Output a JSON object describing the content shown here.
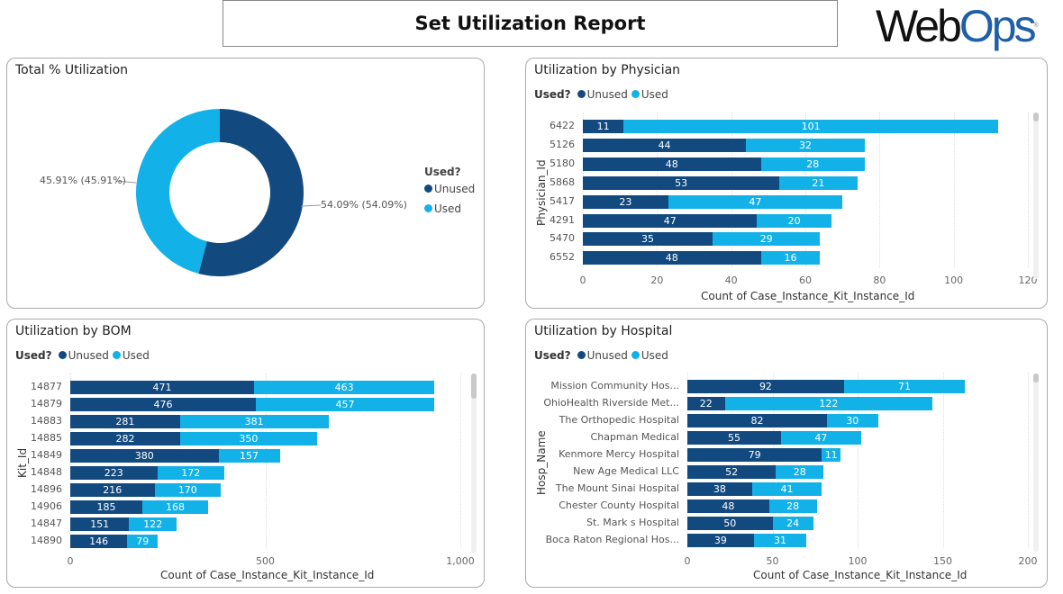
{
  "header": {
    "title": "Set Utilization Report",
    "logo_text": "WebOps"
  },
  "colors": {
    "unused": "#124a80",
    "used": "#12b2e8"
  },
  "legend": {
    "title": "Used?",
    "unused": "Unused",
    "used": "Used"
  },
  "donut": {
    "title": "Total % Utilization",
    "unused_pct": 54.09,
    "used_pct": 45.91,
    "unused_label": "54.09% (54.09%)",
    "used_label": "45.91% (45.91%)"
  },
  "chart_data": [
    {
      "type": "bar",
      "orientation": "horizontal",
      "stacked": true,
      "title": "Utilization by Physician",
      "ylabel": "Physician_Id",
      "xlabel": "Count of Case_Instance_Kit_Instance_Id",
      "xlim": [
        0,
        120
      ],
      "ticks": [
        "0",
        "20",
        "40",
        "60",
        "80",
        "100",
        "120"
      ],
      "categories": [
        "6422",
        "5126",
        "5180",
        "5868",
        "5417",
        "4291",
        "5470",
        "6552"
      ],
      "series": [
        {
          "name": "Unused",
          "values": [
            11,
            44,
            48,
            53,
            23,
            47,
            35,
            48
          ]
        },
        {
          "name": "Used",
          "values": [
            101,
            32,
            28,
            21,
            47,
            20,
            29,
            16
          ]
        }
      ]
    },
    {
      "type": "bar",
      "orientation": "horizontal",
      "stacked": true,
      "title": "Utilization by BOM",
      "ylabel": "Kit_Id",
      "xlabel": "Count of Case_Instance_Kit_Instance_Id",
      "xlim": [
        0,
        1000
      ],
      "ticks": [
        "0",
        "500",
        "1,000"
      ],
      "categories": [
        "14877",
        "14879",
        "14883",
        "14885",
        "14849",
        "14848",
        "14896",
        "14906",
        "14847",
        "14890"
      ],
      "series": [
        {
          "name": "Unused",
          "values": [
            471,
            476,
            281,
            282,
            380,
            223,
            216,
            185,
            151,
            146
          ]
        },
        {
          "name": "Used",
          "values": [
            463,
            457,
            381,
            350,
            157,
            172,
            170,
            168,
            122,
            79
          ]
        }
      ]
    },
    {
      "type": "bar",
      "orientation": "horizontal",
      "stacked": true,
      "title": "Utilization by Hospital",
      "ylabel": "Hosp_Name",
      "xlabel": "Count of Case_Instance_Kit_Instance_Id",
      "xlim": [
        0,
        200
      ],
      "ticks": [
        "0",
        "50",
        "100",
        "150",
        "200"
      ],
      "categories": [
        "Mission Community Hos...",
        "OhioHealth Riverside Met...",
        "The Orthopedic Hospital",
        "Chapman Medical",
        "Kenmore Mercy Hospital",
        "New Age Medical LLC",
        "The Mount Sinai Hospital",
        "Chester County Hospital",
        "St. Mark s Hospital",
        "Boca Raton Regional Hos..."
      ],
      "series": [
        {
          "name": "Unused",
          "values": [
            92,
            22,
            82,
            55,
            79,
            52,
            38,
            48,
            50,
            39
          ]
        },
        {
          "name": "Used",
          "values": [
            71,
            122,
            30,
            47,
            11,
            28,
            41,
            28,
            24,
            31
          ]
        }
      ]
    }
  ]
}
